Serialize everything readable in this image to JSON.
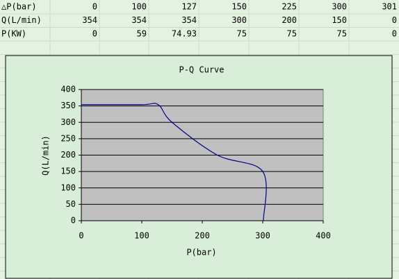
{
  "table": {
    "rows": [
      [
        "△P(bar)",
        0,
        100,
        127,
        150,
        225,
        300,
        301
      ],
      [
        "Q(L/min)",
        354,
        354,
        354,
        300,
        200,
        150,
        0
      ],
      [
        "P(KW)",
        0,
        59,
        74.93,
        75,
        75,
        75,
        0
      ]
    ]
  },
  "chart_data": {
    "type": "line",
    "title": "P-Q Curve",
    "x_label": "P(bar)",
    "y_label": "Q(L/min)",
    "x": [
      0,
      100,
      127,
      150,
      225,
      300,
      301
    ],
    "series": [
      {
        "color": "#00008b",
        "values": [
          354,
          354,
          354,
          300,
          200,
          150,
          0
        ]
      }
    ],
    "smooth": true,
    "xlim": [
      0,
      400
    ],
    "xticks": [
      0,
      100,
      200,
      300,
      400
    ],
    "ylim": [
      0,
      400
    ],
    "yticks": [
      0,
      50,
      100,
      150,
      200,
      250,
      300,
      350,
      400
    ],
    "grid": true,
    "plot_background": "#c0c0c0"
  }
}
